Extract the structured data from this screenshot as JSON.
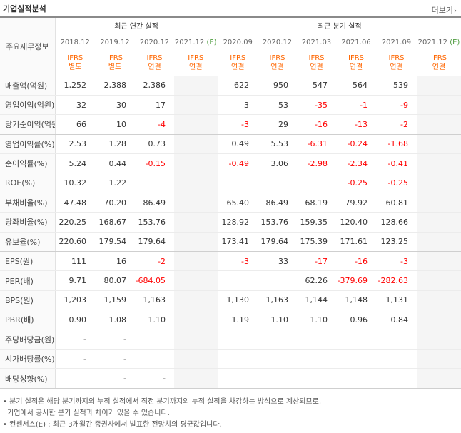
{
  "header": {
    "title": "기업실적분석",
    "more_label": "더보기",
    "more_arrow": "›"
  },
  "table": {
    "row_header_label": "주요재무정보",
    "annual_group_label": "최근 연간 실적",
    "quarterly_group_label": "최근 분기 실적",
    "columns": [
      {
        "period": "2018.12",
        "std1": "IFRS",
        "std2": "별도",
        "estimate": false
      },
      {
        "period": "2019.12",
        "std1": "IFRS",
        "std2": "별도",
        "estimate": false
      },
      {
        "period": "2020.12",
        "std1": "IFRS",
        "std2": "연결",
        "estimate": false
      },
      {
        "period": "2021.12",
        "std1": "IFRS",
        "std2": "연결",
        "estimate": true,
        "estimate_mark": "(E)"
      },
      {
        "period": "2020.09",
        "std1": "IFRS",
        "std2": "연결",
        "estimate": false
      },
      {
        "period": "2020.12",
        "std1": "IFRS",
        "std2": "연결",
        "estimate": false
      },
      {
        "period": "2021.03",
        "std1": "IFRS",
        "std2": "연결",
        "estimate": false
      },
      {
        "period": "2021.06",
        "std1": "IFRS",
        "std2": "연결",
        "estimate": false
      },
      {
        "period": "2021.09",
        "std1": "IFRS",
        "std2": "연결",
        "estimate": false
      },
      {
        "period": "2021.12",
        "std1": "IFRS",
        "std2": "연결",
        "estimate": true,
        "estimate_mark": "(E)"
      }
    ],
    "rows": [
      {
        "label": "매출액(억원)",
        "values": [
          "1,252",
          "2,388",
          "2,386",
          "",
          "622",
          "950",
          "547",
          "564",
          "539",
          ""
        ]
      },
      {
        "label": "영업이익(억원)",
        "values": [
          "32",
          "30",
          "17",
          "",
          "3",
          "53",
          "-35",
          "-1",
          "-9",
          ""
        ]
      },
      {
        "label": "당기순이익(억원)",
        "values": [
          "66",
          "10",
          "-4",
          "",
          "-3",
          "29",
          "-16",
          "-13",
          "-2",
          ""
        ],
        "group_end": true
      },
      {
        "label": "영업이익률(%)",
        "values": [
          "2.53",
          "1.28",
          "0.73",
          "",
          "0.49",
          "5.53",
          "-6.31",
          "-0.24",
          "-1.68",
          ""
        ]
      },
      {
        "label": "순이익률(%)",
        "values": [
          "5.24",
          "0.44",
          "-0.15",
          "",
          "-0.49",
          "3.06",
          "-2.98",
          "-2.34",
          "-0.41",
          ""
        ]
      },
      {
        "label": "ROE(%)",
        "values": [
          "10.32",
          "1.22",
          "",
          "",
          "",
          "",
          "",
          "-0.25",
          "-0.25",
          ""
        ],
        "group_end": true
      },
      {
        "label": "부채비율(%)",
        "values": [
          "47.48",
          "70.20",
          "86.49",
          "",
          "65.40",
          "86.49",
          "68.19",
          "79.92",
          "60.81",
          ""
        ]
      },
      {
        "label": "당좌비율(%)",
        "values": [
          "220.25",
          "168.67",
          "153.76",
          "",
          "128.92",
          "153.76",
          "159.35",
          "120.40",
          "128.66",
          ""
        ]
      },
      {
        "label": "유보율(%)",
        "values": [
          "220.60",
          "179.54",
          "179.64",
          "",
          "173.41",
          "179.64",
          "175.39",
          "171.61",
          "123.25",
          ""
        ],
        "group_end": true
      },
      {
        "label": "EPS(원)",
        "values": [
          "111",
          "16",
          "-2",
          "",
          "-3",
          "33",
          "-17",
          "-16",
          "-3",
          ""
        ]
      },
      {
        "label": "PER(배)",
        "values": [
          "9.71",
          "80.07",
          "-684.05",
          "",
          "",
          "",
          "62.26",
          "-379.69",
          "-282.63",
          ""
        ]
      },
      {
        "label": "BPS(원)",
        "values": [
          "1,203",
          "1,159",
          "1,163",
          "",
          "1,130",
          "1,163",
          "1,144",
          "1,148",
          "1,131",
          ""
        ]
      },
      {
        "label": "PBR(배)",
        "values": [
          "0.90",
          "1.08",
          "1.10",
          "",
          "1.19",
          "1.10",
          "1.10",
          "0.96",
          "0.84",
          ""
        ],
        "group_end": true
      },
      {
        "label": "주당배당금(원)",
        "values": [
          "-",
          "-",
          "",
          "",
          "",
          "",
          "",
          "",
          "",
          ""
        ]
      },
      {
        "label": "시가배당률(%)",
        "values": [
          "-",
          "-",
          "",
          "",
          "",
          "",
          "",
          "",
          "",
          ""
        ]
      },
      {
        "label": "배당성향(%)",
        "values": [
          "",
          "-",
          "-",
          "",
          "",
          "",
          "",
          "",
          "",
          ""
        ],
        "group_end": true
      }
    ]
  },
  "notes": [
    "• 분기 실적은 해당 분기까지의 누적 실적에서 직전 분기까지의 누적 실적을 차감하는 방식으로 계산되므로,",
    "기업에서 공시한 분기 실적과 차이가 있을 수 있습니다.",
    "• 컨센서스(E) : 최근 3개월간 증권사에서 발표한 전망치의 평균값입니다."
  ]
}
